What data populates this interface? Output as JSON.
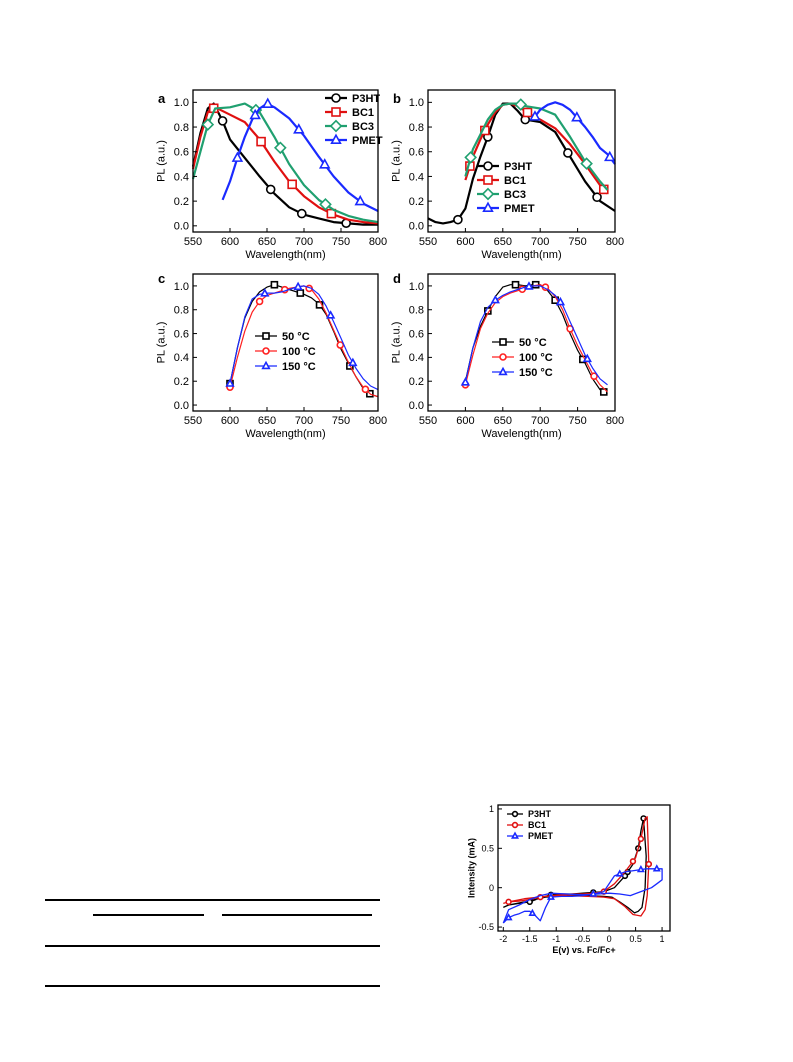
{
  "colors": {
    "P3HT": "#000000",
    "BC1": "#e01010",
    "BC3": "#20a070",
    "PMET": "#1a2aff",
    "T50": "#000000",
    "T100": "#ff2020",
    "T150": "#1a2aff"
  },
  "chart_data": [
    {
      "panel": "a",
      "type": "line",
      "xlabel": "Wavelength(nm)",
      "ylabel": "PL (a.u.)",
      "xlim": [
        550,
        800
      ],
      "ylim": [
        -0.05,
        1.1
      ],
      "xticks": [
        550,
        600,
        650,
        700,
        750,
        800
      ],
      "yticks": [
        0.0,
        0.2,
        0.4,
        0.6,
        0.8,
        1.0
      ],
      "legend_position": "top-right",
      "series": [
        {
          "name": "P3HT",
          "color": "#000000",
          "marker": "circle",
          "x": [
            550,
            560,
            570,
            578,
            590,
            600,
            620,
            640,
            660,
            680,
            700,
            720,
            740,
            760,
            780,
            800
          ],
          "y": [
            0.48,
            0.75,
            0.95,
            0.99,
            0.85,
            0.7,
            0.55,
            0.4,
            0.26,
            0.15,
            0.09,
            0.06,
            0.03,
            0.02,
            0.01,
            0.01
          ],
          "markers_x": [
            590,
            655,
            697,
            757
          ]
        },
        {
          "name": "BC1",
          "color": "#e01010",
          "marker": "square",
          "x": [
            550,
            560,
            570,
            580,
            600,
            620,
            640,
            660,
            680,
            700,
            720,
            740,
            760,
            780,
            800
          ],
          "y": [
            0.46,
            0.72,
            0.92,
            0.96,
            0.9,
            0.84,
            0.7,
            0.52,
            0.36,
            0.24,
            0.15,
            0.09,
            0.05,
            0.03,
            0.02
          ],
          "markers_x": [
            578,
            642,
            684,
            737
          ]
        },
        {
          "name": "BC3",
          "color": "#20a070",
          "marker": "diamond",
          "x": [
            550,
            560,
            570,
            580,
            600,
            620,
            640,
            660,
            680,
            700,
            720,
            740,
            760,
            780,
            800
          ],
          "y": [
            0.38,
            0.6,
            0.82,
            0.95,
            0.96,
            0.99,
            0.92,
            0.72,
            0.5,
            0.33,
            0.21,
            0.13,
            0.08,
            0.05,
            0.03
          ],
          "markers_x": [
            570,
            635,
            668,
            729
          ]
        },
        {
          "name": "PMET",
          "color": "#1a2aff",
          "marker": "triangle",
          "x": [
            590,
            600,
            610,
            620,
            630,
            640,
            650,
            660,
            680,
            700,
            720,
            740,
            760,
            780,
            800
          ],
          "y": [
            0.21,
            0.36,
            0.55,
            0.72,
            0.86,
            0.95,
            0.99,
            0.96,
            0.87,
            0.73,
            0.56,
            0.4,
            0.27,
            0.18,
            0.12
          ],
          "markers_x": [
            610,
            634,
            651,
            693,
            728,
            776
          ]
        }
      ]
    },
    {
      "panel": "b",
      "type": "line",
      "xlabel": "Wavelength(nm)",
      "ylabel": "PL (a.u.)",
      "xlim": [
        550,
        800
      ],
      "ylim": [
        -0.05,
        1.1
      ],
      "xticks": [
        550,
        600,
        650,
        700,
        750,
        800
      ],
      "yticks": [
        0.0,
        0.2,
        0.4,
        0.6,
        0.8,
        1.0
      ],
      "legend_position": "bottom-center",
      "series": [
        {
          "name": "P3HT",
          "color": "#000000",
          "marker": "circle",
          "x": [
            550,
            560,
            570,
            580,
            590,
            600,
            610,
            620,
            630,
            640,
            650,
            660,
            670,
            680,
            700,
            720,
            740,
            760,
            780,
            800
          ],
          "y": [
            0.06,
            0.03,
            0.02,
            0.03,
            0.05,
            0.14,
            0.38,
            0.56,
            0.72,
            0.9,
            0.99,
            0.99,
            0.93,
            0.86,
            0.84,
            0.76,
            0.56,
            0.36,
            0.2,
            0.12
          ],
          "markers_x": [
            590,
            630,
            680,
            737,
            776
          ]
        },
        {
          "name": "BC1",
          "color": "#e01010",
          "marker": "square",
          "x": [
            600,
            610,
            620,
            630,
            640,
            650,
            660,
            670,
            680,
            690,
            700,
            720,
            740,
            760,
            780,
            790
          ],
          "y": [
            0.37,
            0.56,
            0.7,
            0.82,
            0.92,
            0.98,
            0.99,
            0.97,
            0.93,
            0.89,
            0.86,
            0.79,
            0.66,
            0.5,
            0.33,
            0.26
          ],
          "markers_x": [
            606,
            626,
            683,
            785
          ]
        },
        {
          "name": "BC3",
          "color": "#20a070",
          "marker": "diamond",
          "x": [
            600,
            610,
            620,
            630,
            640,
            650,
            660,
            670,
            680,
            690,
            700,
            720,
            740,
            760,
            780,
            790
          ],
          "y": [
            0.4,
            0.62,
            0.74,
            0.86,
            0.94,
            0.98,
            0.99,
            0.99,
            0.97,
            0.96,
            0.95,
            0.9,
            0.72,
            0.52,
            0.36,
            0.29
          ],
          "markers_x": [
            607,
            674,
            762
          ]
        },
        {
          "name": "PMET",
          "color": "#1a2aff",
          "marker": "triangle",
          "x": [
            690,
            700,
            710,
            720,
            730,
            740,
            750,
            760,
            770,
            780,
            790,
            800
          ],
          "y": [
            0.86,
            0.94,
            0.98,
            1.0,
            0.98,
            0.94,
            0.87,
            0.8,
            0.72,
            0.63,
            0.58,
            0.5
          ],
          "markers_x": [
            693,
            749,
            793
          ]
        }
      ]
    },
    {
      "panel": "c",
      "type": "line",
      "xlabel": "Wavelength(nm)",
      "ylabel": "PL (a.u.)",
      "xlim": [
        550,
        800
      ],
      "ylim": [
        -0.05,
        1.1
      ],
      "xticks": [
        550,
        600,
        650,
        700,
        750,
        800
      ],
      "yticks": [
        0.0,
        0.2,
        0.4,
        0.6,
        0.8,
        1.0
      ],
      "legend_position": "center-left",
      "series": [
        {
          "name": "50 °C",
          "color": "#000000",
          "marker": "square",
          "x": [
            600,
            610,
            620,
            630,
            640,
            650,
            660,
            670,
            680,
            690,
            700,
            710,
            720,
            730,
            740,
            750,
            760,
            770,
            780,
            790,
            800
          ],
          "y": [
            0.18,
            0.48,
            0.73,
            0.87,
            0.95,
            0.99,
            1.01,
            0.99,
            0.97,
            0.95,
            0.93,
            0.9,
            0.85,
            0.76,
            0.62,
            0.47,
            0.35,
            0.24,
            0.14,
            0.09,
            0.07
          ],
          "markers_x": [
            600,
            660,
            695,
            721,
            762,
            789
          ]
        },
        {
          "name": "100 °C",
          "color": "#ff2020",
          "marker": "circle",
          "x": [
            600,
            610,
            620,
            630,
            640,
            650,
            660,
            670,
            680,
            690,
            700,
            710,
            720,
            730,
            740,
            750,
            760,
            770,
            780,
            790,
            800
          ],
          "y": [
            0.15,
            0.4,
            0.62,
            0.78,
            0.87,
            0.92,
            0.94,
            0.96,
            0.98,
            0.99,
            1.0,
            0.97,
            0.89,
            0.77,
            0.63,
            0.49,
            0.36,
            0.24,
            0.15,
            0.09,
            0.07
          ],
          "markers_x": [
            600,
            640,
            674,
            707,
            749,
            783
          ]
        },
        {
          "name": "150 °C",
          "color": "#1a2aff",
          "marker": "triangle",
          "x": [
            600,
            610,
            620,
            630,
            640,
            650,
            660,
            670,
            680,
            690,
            700,
            710,
            720,
            730,
            740,
            750,
            760,
            770,
            780,
            790,
            800
          ],
          "y": [
            0.18,
            0.48,
            0.74,
            0.89,
            0.93,
            0.94,
            0.94,
            0.95,
            0.97,
            0.99,
            1.0,
            0.98,
            0.93,
            0.83,
            0.7,
            0.56,
            0.42,
            0.31,
            0.22,
            0.16,
            0.13
          ],
          "markers_x": [
            600,
            647,
            692,
            736,
            766
          ]
        }
      ]
    },
    {
      "panel": "d",
      "type": "line",
      "xlabel": "Wavelength(nm)",
      "ylabel": "PL (a.u.)",
      "xlim": [
        550,
        800
      ],
      "ylim": [
        -0.05,
        1.1
      ],
      "xticks": [
        550,
        600,
        650,
        700,
        750,
        800
      ],
      "yticks": [
        0.0,
        0.2,
        0.4,
        0.6,
        0.8,
        1.0
      ],
      "legend_position": "center-right",
      "series": [
        {
          "name": "50 °C",
          "color": "#000000",
          "marker": "square",
          "x": [
            600,
            610,
            620,
            630,
            640,
            650,
            660,
            670,
            680,
            690,
            700,
            710,
            720,
            730,
            740,
            750,
            760,
            770,
            780,
            790
          ],
          "y": [
            0.2,
            0.48,
            0.66,
            0.79,
            0.91,
            0.99,
            1.01,
            1.01,
            1.0,
            1.01,
            1.01,
            0.96,
            0.88,
            0.76,
            0.6,
            0.46,
            0.35,
            0.22,
            0.13,
            0.09
          ],
          "markers_x": [
            630,
            667,
            694,
            720,
            757,
            785
          ]
        },
        {
          "name": "100 °C",
          "color": "#ff2020",
          "marker": "circle",
          "x": [
            600,
            610,
            620,
            630,
            640,
            650,
            660,
            670,
            680,
            690,
            700,
            710,
            720,
            730,
            740,
            750,
            760,
            770,
            780,
            790
          ],
          "y": [
            0.17,
            0.42,
            0.64,
            0.77,
            0.86,
            0.91,
            0.94,
            0.96,
            0.98,
            1.0,
            1.01,
            0.98,
            0.91,
            0.8,
            0.64,
            0.5,
            0.38,
            0.26,
            0.17,
            0.11
          ],
          "markers_x": [
            600,
            676,
            707,
            740,
            772
          ]
        },
        {
          "name": "150 °C",
          "color": "#1a2aff",
          "marker": "triangle",
          "x": [
            600,
            610,
            620,
            630,
            640,
            650,
            660,
            670,
            680,
            690,
            700,
            710,
            720,
            730,
            740,
            750,
            760,
            770,
            780,
            790
          ],
          "y": [
            0.19,
            0.48,
            0.7,
            0.82,
            0.88,
            0.92,
            0.95,
            0.97,
            0.99,
            1.0,
            1.0,
            0.97,
            0.92,
            0.84,
            0.7,
            0.56,
            0.42,
            0.31,
            0.22,
            0.17
          ],
          "markers_x": [
            600,
            640,
            685,
            727,
            763
          ]
        }
      ]
    },
    {
      "panel": "cv",
      "type": "line",
      "xlabel": "E(v) vs. Fc/Fc+",
      "ylabel": "Intensity (mA)",
      "xlim": [
        -2.1,
        1.15
      ],
      "ylim": [
        -0.55,
        1.05
      ],
      "xticks": [
        -2.0,
        -1.5,
        -1.0,
        -0.5,
        0.0,
        0.5,
        1.0
      ],
      "yticks": [
        -0.5,
        0.0,
        0.5,
        1.0
      ],
      "legend_position": "top-left",
      "series": [
        {
          "name": "P3HT",
          "color": "#000000",
          "marker": "circle",
          "x": [
            -2.0,
            -1.9,
            -1.7,
            -1.5,
            -1.3,
            -1.1,
            -0.9,
            -0.7,
            -0.5,
            -0.3,
            -0.1,
            0.1,
            0.3,
            0.45,
            0.55,
            0.6,
            0.65,
            0.7,
            0.68,
            0.62,
            0.55,
            0.48,
            0.35,
            0.2,
            0.05,
            -0.1,
            -0.4,
            -0.8,
            -1.2,
            -1.6,
            -1.9,
            -2.0
          ],
          "y": [
            -0.25,
            -0.22,
            -0.2,
            -0.18,
            -0.13,
            -0.09,
            -0.08,
            -0.08,
            -0.07,
            -0.06,
            -0.05,
            0.0,
            0.15,
            0.3,
            0.5,
            0.72,
            0.88,
            0.4,
            0.0,
            -0.25,
            -0.3,
            -0.32,
            -0.25,
            -0.18,
            -0.12,
            -0.11,
            -0.1,
            -0.1,
            -0.12,
            -0.18,
            -0.22,
            -0.25
          ],
          "markers_x": [
            -1.5,
            -1.1,
            -0.3,
            0.3,
            0.55,
            0.65,
            0.35
          ]
        },
        {
          "name": "BC1",
          "color": "#e01010",
          "marker": "circle",
          "x": [
            -2.0,
            -1.9,
            -1.7,
            -1.5,
            -1.3,
            -1.1,
            -0.9,
            -0.7,
            -0.5,
            -0.3,
            -0.1,
            0.1,
            0.3,
            0.5,
            0.6,
            0.68,
            0.72,
            0.75,
            0.72,
            0.68,
            0.6,
            0.45,
            0.3,
            0.1,
            -0.1,
            -0.4,
            -0.8,
            -1.2,
            -1.6,
            -1.9,
            -2.0
          ],
          "y": [
            -0.2,
            -0.18,
            -0.17,
            -0.15,
            -0.12,
            -0.1,
            -0.09,
            -0.08,
            -0.08,
            -0.07,
            -0.05,
            0.05,
            0.2,
            0.38,
            0.62,
            0.88,
            0.9,
            0.3,
            -0.1,
            -0.28,
            -0.36,
            -0.34,
            -0.24,
            -0.14,
            -0.12,
            -0.11,
            -0.1,
            -0.11,
            -0.14,
            -0.18,
            -0.2
          ],
          "markers_x": [
            -1.9,
            -1.3,
            -0.1,
            0.6,
            0.75,
            0.45
          ]
        },
        {
          "name": "PMET",
          "color": "#1a2aff",
          "marker": "triangle",
          "x": [
            -2.0,
            -1.9,
            -1.8,
            -1.7,
            -1.6,
            -1.5,
            -1.4,
            -1.3,
            -1.2,
            -1.1,
            -0.9,
            -0.7,
            -0.5,
            -0.3,
            -0.1,
            0.0,
            0.1,
            0.3,
            0.5,
            0.7,
            0.85,
            1.0,
            1.0,
            0.9,
            0.8,
            0.6,
            0.4,
            0.2,
            0.0,
            -0.2,
            -0.5,
            -0.8,
            -1.1,
            -1.3,
            -1.5,
            -1.7,
            -1.9,
            -2.0
          ],
          "y": [
            -0.45,
            -0.38,
            -0.35,
            -0.33,
            -0.3,
            -0.3,
            -0.35,
            -0.42,
            -0.25,
            -0.12,
            -0.11,
            -0.11,
            -0.1,
            -0.08,
            -0.05,
            0.05,
            0.15,
            0.2,
            0.22,
            0.24,
            0.24,
            0.24,
            0.1,
            0.05,
            0.0,
            -0.05,
            -0.1,
            -0.08,
            -0.07,
            -0.08,
            -0.09,
            -0.08,
            -0.07,
            -0.1,
            -0.15,
            -0.22,
            -0.28,
            -0.45
          ],
          "markers_x": [
            -1.9,
            -1.45,
            -1.1,
            -0.3,
            0.2,
            0.6,
            0.9
          ]
        }
      ]
    }
  ],
  "panel_letters": {
    "a": "a",
    "b": "b",
    "c": "c",
    "d": "d"
  }
}
